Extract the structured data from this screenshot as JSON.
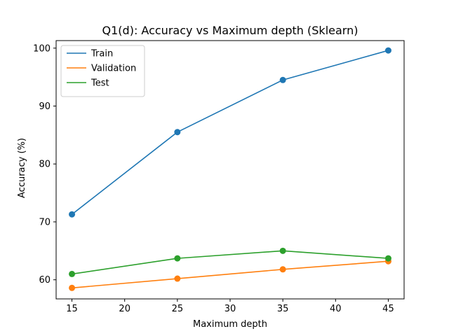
{
  "chart_data": {
    "type": "line",
    "title": "Q1(d): Accuracy vs Maximum depth (Sklearn)",
    "xlabel": "Maximum depth",
    "ylabel": "Accuracy (%)",
    "xlim": [
      13.5,
      46.5
    ],
    "ylim": [
      56.7,
      101.3
    ],
    "xticks": [
      15,
      20,
      25,
      30,
      35,
      40,
      45
    ],
    "yticks": [
      60,
      70,
      80,
      90,
      100
    ],
    "grid": false,
    "legend_position": "top-left",
    "x": [
      15,
      25,
      35,
      45
    ],
    "series": [
      {
        "name": "Train",
        "color": "#1f77b4",
        "values": [
          71.3,
          85.5,
          94.5,
          99.6
        ]
      },
      {
        "name": "Validation",
        "color": "#ff7f0e",
        "values": [
          58.6,
          60.2,
          61.8,
          63.2
        ]
      },
      {
        "name": "Test",
        "color": "#2ca02c",
        "values": [
          61.0,
          63.7,
          65.0,
          63.7
        ]
      }
    ]
  }
}
